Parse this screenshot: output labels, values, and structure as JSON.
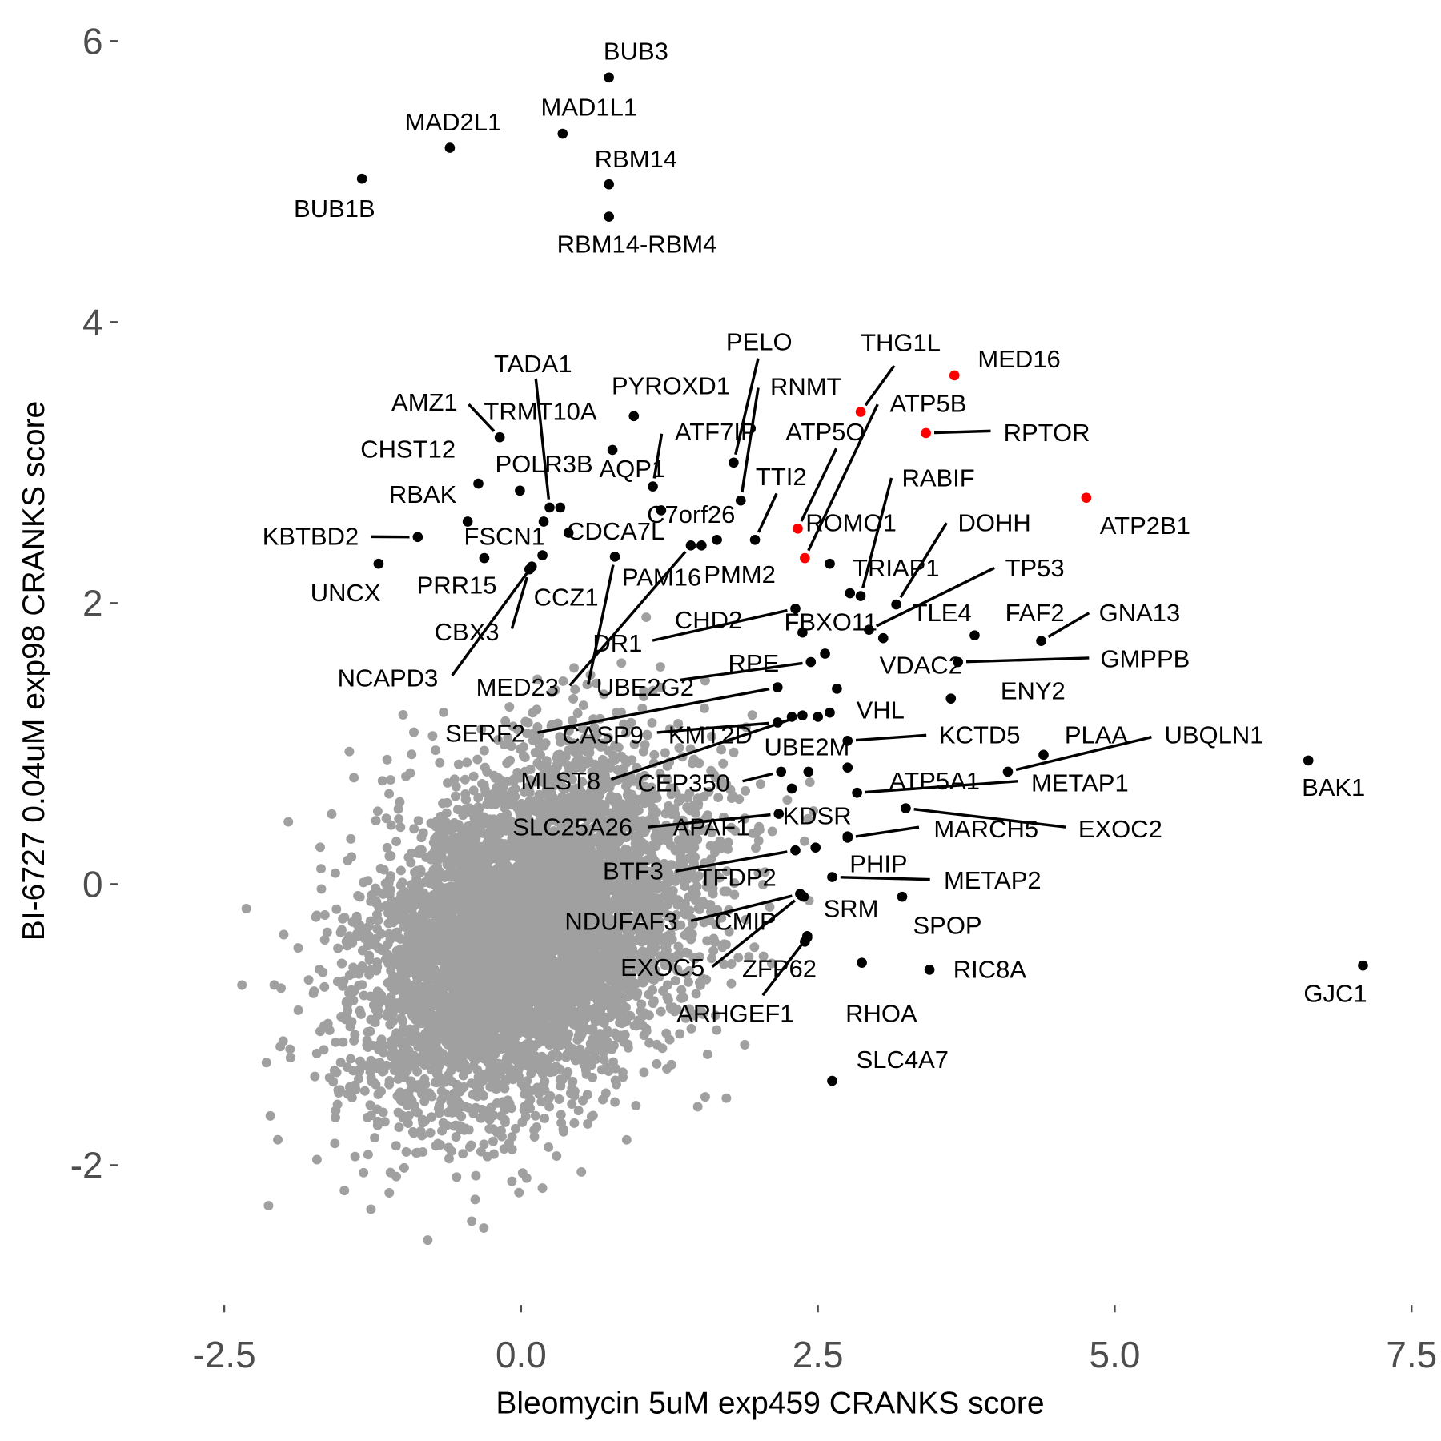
{
  "chart_data": {
    "type": "scatter",
    "title": "",
    "xlabel": "Bleomycin 5uM exp459 CRANKS score",
    "ylabel": "BI-6727 0.04uM exp98 CRANKS score",
    "xlim": [
      -3.35,
      7.75
    ],
    "ylim": [
      -3.0,
      6.3
    ],
    "x_ticks": [
      -2.5,
      0.0,
      2.5,
      5.0,
      7.5
    ],
    "x_tick_labels": [
      "-2.5",
      "0.0",
      "2.5",
      "5.0",
      "7.5"
    ],
    "y_ticks": [
      -2,
      0,
      2,
      4,
      6
    ],
    "y_tick_labels": [
      "-2",
      "0",
      "2",
      "4",
      "6"
    ],
    "grid": false,
    "colors": {
      "background_genes": "#a0a0a0",
      "highlight": "#000000",
      "red": "#ff0000"
    },
    "background": {
      "description_free": true,
      "n": 6000,
      "mean": [
        0.05,
        -0.35
      ],
      "sd": [
        0.7,
        0.62
      ],
      "rho": 0.35,
      "seed": 42
    },
    "points": [
      {
        "gene": "BUB3",
        "x": 0.74,
        "y": 5.74,
        "color": "black"
      },
      {
        "gene": "MAD1L1",
        "x": 0.35,
        "y": 5.34,
        "color": "black"
      },
      {
        "gene": "MAD2L1",
        "x": -0.6,
        "y": 5.24,
        "color": "black"
      },
      {
        "gene": "RBM14",
        "x": 0.74,
        "y": 4.98,
        "color": "black"
      },
      {
        "gene": "RBM14-RBM4",
        "x": 0.74,
        "y": 4.75,
        "color": "black"
      },
      {
        "gene": "BUB1B",
        "x": -1.34,
        "y": 5.02,
        "color": "black"
      },
      {
        "gene": "MED16",
        "x": 3.65,
        "y": 3.62,
        "color": "red"
      },
      {
        "gene": "THG1L",
        "x": 2.86,
        "y": 3.36,
        "color": "red"
      },
      {
        "gene": "RPTOR",
        "x": 3.41,
        "y": 3.21,
        "color": "red"
      },
      {
        "gene": "ATP2B1",
        "x": 4.76,
        "y": 2.75,
        "color": "red"
      },
      {
        "gene": "ATP5O",
        "x": 2.33,
        "y": 2.53,
        "color": "red"
      },
      {
        "gene": "ATP5B",
        "x": 2.39,
        "y": 2.32,
        "color": "red"
      },
      {
        "gene": "AMZ1",
        "x": -0.18,
        "y": 3.18,
        "color": "black"
      },
      {
        "gene": "CHST12",
        "x": -0.36,
        "y": 2.85,
        "color": "black"
      },
      {
        "gene": "POLR3B",
        "x": -0.01,
        "y": 2.8,
        "color": "black"
      },
      {
        "gene": "RBAK",
        "x": -0.45,
        "y": 2.58,
        "color": "black"
      },
      {
        "gene": "KBTBD2",
        "x": -0.87,
        "y": 2.47,
        "color": "black"
      },
      {
        "gene": "UNCX",
        "x": -1.2,
        "y": 2.28,
        "color": "black"
      },
      {
        "gene": "FSCN1",
        "x": -0.31,
        "y": 2.32,
        "color": "black"
      },
      {
        "gene": "PRR15",
        "x": 0.19,
        "y": 2.58,
        "color": "black"
      },
      {
        "gene": "CCZ1",
        "x": 0.18,
        "y": 2.34,
        "color": "black"
      },
      {
        "gene": "CBX3",
        "x": 0.07,
        "y": 2.24,
        "color": "black"
      },
      {
        "gene": "NCAPD3",
        "x": 0.09,
        "y": 2.26,
        "color": "black"
      },
      {
        "gene": "TADA1",
        "x": 0.24,
        "y": 2.68,
        "color": "black"
      },
      {
        "gene": "TRMT10A",
        "x": 0.33,
        "y": 2.68,
        "color": "black"
      },
      {
        "gene": "CDCA7L",
        "x": 0.4,
        "y": 2.5,
        "color": "black"
      },
      {
        "gene": "PYROXD1",
        "x": 0.95,
        "y": 3.33,
        "color": "black"
      },
      {
        "gene": "AQP1",
        "x": 0.77,
        "y": 3.09,
        "color": "black"
      },
      {
        "gene": "ATF7IP",
        "x": 1.11,
        "y": 2.83,
        "color": "black"
      },
      {
        "gene": "C7orf26",
        "x": 1.18,
        "y": 2.66,
        "color": "black"
      },
      {
        "gene": "DR1",
        "x": 0.79,
        "y": 2.33,
        "color": "black"
      },
      {
        "gene": "MED23",
        "x": 1.43,
        "y": 2.41,
        "color": "black"
      },
      {
        "gene": "PAM16",
        "x": 1.52,
        "y": 2.41,
        "color": "black"
      },
      {
        "gene": "PMM2",
        "x": 1.65,
        "y": 2.45,
        "color": "black"
      },
      {
        "gene": "PELO",
        "x": 1.79,
        "y": 3.0,
        "color": "black"
      },
      {
        "gene": "RNMT",
        "x": 1.85,
        "y": 2.73,
        "color": "black"
      },
      {
        "gene": "TTI2",
        "x": 1.97,
        "y": 2.45,
        "color": "black"
      },
      {
        "gene": "ROMO1",
        "x": 2.6,
        "y": 2.28,
        "color": "black"
      },
      {
        "gene": "TRIAP1",
        "x": 2.77,
        "y": 2.07,
        "color": "black"
      },
      {
        "gene": "RABIF",
        "x": 2.86,
        "y": 2.05,
        "color": "black"
      },
      {
        "gene": "DOHH",
        "x": 3.16,
        "y": 1.99,
        "color": "black"
      },
      {
        "gene": "TLE4",
        "x": 3.05,
        "y": 1.75,
        "color": "black"
      },
      {
        "gene": "TP53",
        "x": 2.93,
        "y": 1.81,
        "color": "black"
      },
      {
        "gene": "CHD2",
        "x": 2.31,
        "y": 1.96,
        "color": "black"
      },
      {
        "gene": "FBXO11",
        "x": 2.37,
        "y": 1.79,
        "color": "black"
      },
      {
        "gene": "FAF2",
        "x": 3.82,
        "y": 1.77,
        "color": "black"
      },
      {
        "gene": "GNA13",
        "x": 4.38,
        "y": 1.73,
        "color": "black"
      },
      {
        "gene": "GMPPB",
        "x": 3.68,
        "y": 1.58,
        "color": "black"
      },
      {
        "gene": "ENY2",
        "x": 3.62,
        "y": 1.32,
        "color": "black"
      },
      {
        "gene": "VDAC2",
        "x": 2.66,
        "y": 1.39,
        "color": "black"
      },
      {
        "gene": "VHL",
        "x": 2.6,
        "y": 1.22,
        "color": "black"
      },
      {
        "gene": "RPE",
        "x": 2.56,
        "y": 1.64,
        "color": "black"
      },
      {
        "gene": "UBE2G2",
        "x": 2.44,
        "y": 1.58,
        "color": "black"
      },
      {
        "gene": "SERF2",
        "x": 2.16,
        "y": 1.4,
        "color": "black"
      },
      {
        "gene": "CASP9",
        "x": 2.16,
        "y": 1.15,
        "color": "black"
      },
      {
        "gene": "KMT2D",
        "x": 2.28,
        "y": 1.19,
        "color": "black"
      },
      {
        "gene": "MLST8",
        "x": 2.37,
        "y": 1.2,
        "color": "black"
      },
      {
        "gene": "UBE2M",
        "x": 2.5,
        "y": 1.19,
        "color": "black"
      },
      {
        "gene": "CEP350",
        "x": 2.19,
        "y": 0.8,
        "color": "black"
      },
      {
        "gene": "APAF1",
        "x": 2.42,
        "y": 0.8,
        "color": "black"
      },
      {
        "gene": "KDSR",
        "x": 2.28,
        "y": 0.68,
        "color": "black"
      },
      {
        "gene": "SLC25A26",
        "x": 2.17,
        "y": 0.5,
        "color": "black"
      },
      {
        "gene": "BTF3",
        "x": 2.31,
        "y": 0.24,
        "color": "black"
      },
      {
        "gene": "TFDP2",
        "x": 2.48,
        "y": 0.26,
        "color": "black"
      },
      {
        "gene": "PHIP",
        "x": 2.75,
        "y": 0.34,
        "color": "black"
      },
      {
        "gene": "METAP2",
        "x": 2.62,
        "y": 0.05,
        "color": "black"
      },
      {
        "gene": "SRM",
        "x": 2.38,
        "y": -0.09,
        "color": "black"
      },
      {
        "gene": "NDUFAF3",
        "x": 2.35,
        "y": -0.07,
        "color": "black"
      },
      {
        "gene": "EXOC5",
        "x": 2.36,
        "y": -0.08,
        "color": "black"
      },
      {
        "gene": "SPOP",
        "x": 3.21,
        "y": -0.09,
        "color": "black"
      },
      {
        "gene": "CMIP",
        "x": 2.41,
        "y": -0.37,
        "color": "black"
      },
      {
        "gene": "ZFP62",
        "x": 2.39,
        "y": -0.41,
        "color": "black"
      },
      {
        "gene": "ARHGEF1",
        "x": 2.41,
        "y": -0.38,
        "color": "black"
      },
      {
        "gene": "RHOA",
        "x": 2.87,
        "y": -0.56,
        "color": "black"
      },
      {
        "gene": "RIC8A",
        "x": 3.44,
        "y": -0.61,
        "color": "black"
      },
      {
        "gene": "SLC4A7",
        "x": 2.62,
        "y": -1.4,
        "color": "black"
      },
      {
        "gene": "KCTD5",
        "x": 2.75,
        "y": 1.02,
        "color": "black"
      },
      {
        "gene": "PLAA",
        "x": 4.4,
        "y": 0.92,
        "color": "black"
      },
      {
        "gene": "UBQLN1",
        "x": 4.1,
        "y": 0.8,
        "color": "black"
      },
      {
        "gene": "METAP1",
        "x": 2.83,
        "y": 0.65,
        "color": "black"
      },
      {
        "gene": "ATP5A1",
        "x": 2.75,
        "y": 0.83,
        "color": "black"
      },
      {
        "gene": "MARCH5",
        "x": 2.75,
        "y": 0.33,
        "color": "black"
      },
      {
        "gene": "EXOC2",
        "x": 3.24,
        "y": 0.54,
        "color": "black"
      },
      {
        "gene": "BAK1",
        "x": 6.63,
        "y": 0.88,
        "color": "black"
      },
      {
        "gene": "GJC1",
        "x": 7.09,
        "y": -0.58,
        "color": "black"
      }
    ]
  }
}
